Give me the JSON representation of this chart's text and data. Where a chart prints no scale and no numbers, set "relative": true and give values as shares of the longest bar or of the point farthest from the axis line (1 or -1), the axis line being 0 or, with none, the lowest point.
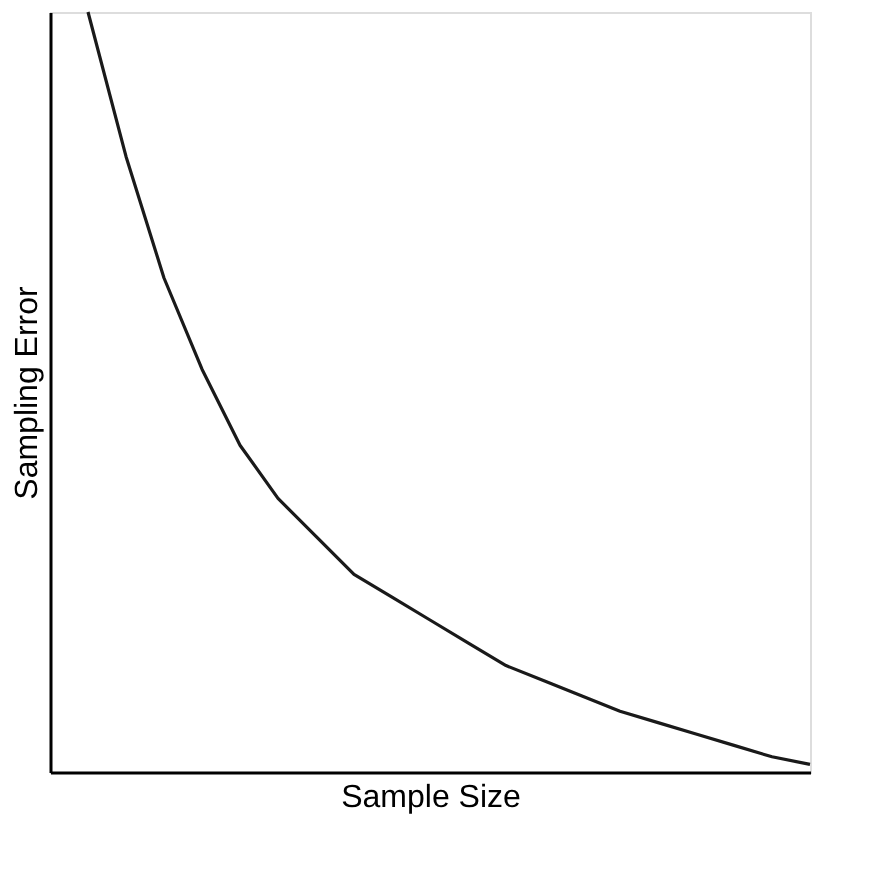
{
  "chart_data": {
    "type": "line",
    "relative": true,
    "xlabel": "Sample Size",
    "ylabel": "Sampling Error",
    "tick_labels": false,
    "grid": false,
    "legend": false,
    "marker": "none",
    "line_style": "solid",
    "categories": [
      null,
      null,
      null,
      null,
      null,
      null,
      null,
      null,
      null,
      null,
      null,
      null,
      null,
      null,
      null,
      null,
      null,
      null,
      null,
      null,
      null
    ],
    "series": [
      {
        "color": "#1a1a1a",
        "values": [
          null,
          1,
          0.81,
          0.65,
          0.53,
          0.43,
          0.36,
          0.31,
          0.26,
          0.23,
          0.2,
          0.17,
          0.14,
          0.12,
          0.1,
          0.08,
          0.065,
          0.05,
          0.035,
          0.02,
          0.01
        ]
      }
    ]
  }
}
